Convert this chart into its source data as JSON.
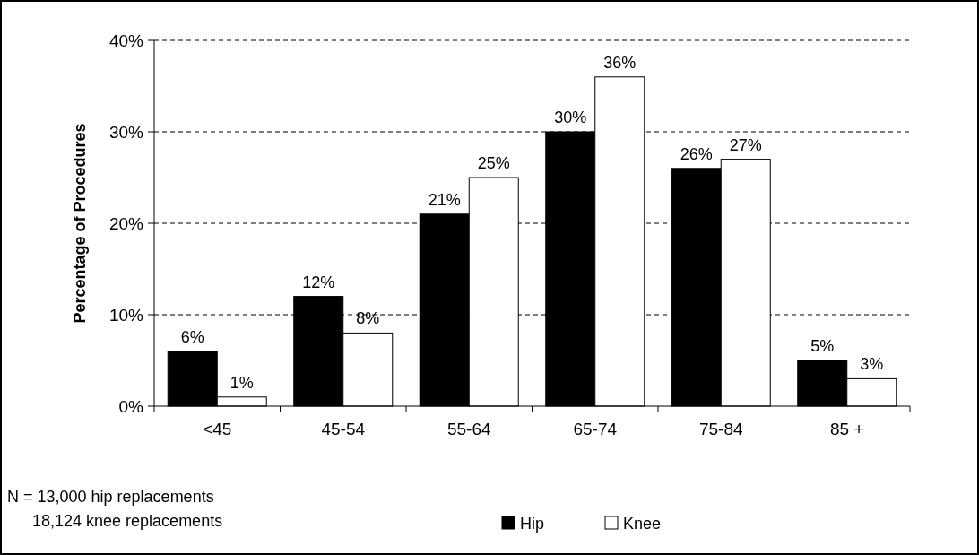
{
  "chart_data": {
    "type": "bar",
    "ylabel": "Percentage of Procedures",
    "categories": [
      "<45",
      "45-54",
      "55-64",
      "65-74",
      "75-84",
      "85 +"
    ],
    "series": [
      {
        "name": "Hip",
        "color": "#000000",
        "values": [
          6,
          12,
          21,
          30,
          26,
          5
        ],
        "value_labels": [
          "6%",
          "12%",
          "21%",
          "30%",
          "26%",
          "5%"
        ]
      },
      {
        "name": "Knee",
        "color": "#ffffff",
        "values": [
          1,
          8,
          25,
          36,
          27,
          3
        ],
        "value_labels": [
          "1%",
          "8%",
          "25%",
          "36%",
          "27%",
          "3%"
        ]
      }
    ],
    "ylim": [
      0,
      40
    ],
    "yticks": [
      {
        "value": 0,
        "label": "0%"
      },
      {
        "value": 10,
        "label": "10%"
      },
      {
        "value": 20,
        "label": "20%"
      },
      {
        "value": 30,
        "label": "30%"
      },
      {
        "value": 40,
        "label": "40%"
      }
    ],
    "grid": "y",
    "legend": "bottom",
    "annotations": [
      "N = 13,000 hip replacements",
      "18,124 knee replacements"
    ]
  }
}
